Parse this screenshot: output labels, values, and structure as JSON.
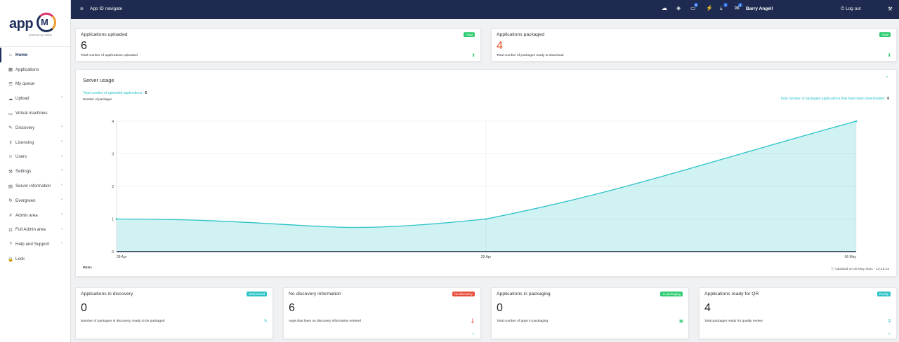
{
  "sidebar": {
    "logo_text": "app",
    "logo_mark": "M",
    "logo_sub": "powered by Juriba",
    "items": [
      {
        "label": "Home",
        "icon": "home-icon",
        "glyph": "⌂",
        "chevron": false,
        "active": true
      },
      {
        "label": "Applications",
        "icon": "grid-icon",
        "glyph": "▦",
        "chevron": false
      },
      {
        "label": "My queue",
        "icon": "list-icon",
        "glyph": "☰",
        "chevron": false
      },
      {
        "label": "Upload",
        "icon": "cloud-upload-icon",
        "glyph": "☁",
        "chevron": true
      },
      {
        "label": "Virtual machines",
        "icon": "monitor-icon",
        "glyph": "▭",
        "chevron": false
      },
      {
        "label": "Discovery",
        "icon": "pencil-icon",
        "glyph": "✎",
        "chevron": true
      },
      {
        "label": "Licensing",
        "icon": "key-icon",
        "glyph": "⚷",
        "chevron": true
      },
      {
        "label": "Users",
        "icon": "users-icon",
        "glyph": "☺",
        "chevron": true
      },
      {
        "label": "Settings",
        "icon": "wrench-icon",
        "glyph": "⚒",
        "chevron": true
      },
      {
        "label": "Server information",
        "icon": "server-icon",
        "glyph": "▤",
        "chevron": true
      },
      {
        "label": "Evergreen",
        "icon": "refresh-icon",
        "glyph": "↻",
        "chevron": true
      },
      {
        "label": "Admin area",
        "icon": "hash-icon",
        "glyph": "#",
        "chevron": true
      },
      {
        "label": "Full Admin area",
        "icon": "admin-icon",
        "glyph": "⊡",
        "chevron": true
      },
      {
        "label": "Help and Support",
        "icon": "question-icon",
        "glyph": "?",
        "chevron": true
      },
      {
        "label": "Lock",
        "icon": "lock-icon",
        "glyph": "🔒",
        "chevron": false
      }
    ]
  },
  "topbar": {
    "menu_glyph": "≡",
    "title": "App ID navigate",
    "user": "Barry Angell",
    "icons": [
      {
        "name": "cloud-icon",
        "glyph": "☁",
        "badge": ""
      },
      {
        "name": "layers-icon",
        "glyph": "◈",
        "badge": ""
      },
      {
        "name": "monitor-icon",
        "glyph": "▭",
        "badge": "0"
      },
      {
        "name": "bolt-icon",
        "glyph": "⚡",
        "badge": ""
      },
      {
        "name": "download-icon",
        "glyph": "⤓",
        "badge": "4"
      },
      {
        "name": "mail-icon",
        "glyph": "✉",
        "badge": "5"
      }
    ],
    "logout": "Log out",
    "wrench": "⚒"
  },
  "cards": {
    "uploaded": {
      "title": "Applications uploaded",
      "tag": "Total",
      "tag_color": "#2ecc71",
      "value": "6",
      "desc": "Total number of applications uploaded",
      "icon": "⬆"
    },
    "packaged": {
      "title": "Applications packaged",
      "tag": "Total",
      "tag_color": "#2ecc71",
      "value": "4",
      "value_color": "#e8542c",
      "desc": "Total number of packages ready to download",
      "icon": "⬇"
    },
    "discovery": {
      "title": "Applications in discovery",
      "tag": "Discovered",
      "tag_color": "#2cc3c7",
      "value": "0",
      "desc": "Number of packages in discovery, ready to be packaged",
      "icon": "✎"
    },
    "no_discovery": {
      "title": "No discovery information",
      "tag": "No discovery",
      "tag_color": "#e74c3c",
      "value": "6",
      "desc": "Apps that have no discovery information entered",
      "icon": "🌡"
    },
    "packaging": {
      "title": "Applications in packaging",
      "tag": "In packaging",
      "tag_color": "#2ecc71",
      "value": "0",
      "desc": "Total number of apps in packaging",
      "icon": "▣"
    },
    "qr": {
      "title": "Applications ready for QR",
      "tag": "Ready",
      "tag_color": "#2cc3c7",
      "value": "4",
      "desc": "Total packages ready for quality review",
      "icon": "⚲"
    }
  },
  "server_usage": {
    "title": "Server usage",
    "legend_uploaded": "Total number of uploaded applications",
    "legend_uploaded_value": "6",
    "legend_downloaded": "Total number of packaged applications that have been downloaded",
    "legend_downloaded_value": "0",
    "pkg_label": "PKG+",
    "updated": "Updated on 06 May 2021 - 12:18:13"
  },
  "chart_data": {
    "type": "area",
    "title": "",
    "ylabel": "Number of packages",
    "xlabel": "",
    "x_ticks": [
      "09 Apr",
      "29 Apr",
      "06 May"
    ],
    "y_ticks": [
      0,
      1,
      2,
      3,
      4
    ],
    "ylim": [
      0,
      4
    ],
    "grid": true,
    "series": [
      {
        "name": "Total number of packaged applications",
        "color": "#2cc3c7",
        "x": [
          "09 Apr",
          "29 Apr",
          "06 May"
        ],
        "values": [
          1,
          1,
          4
        ]
      },
      {
        "name": "Total number of packaged applications that have been downloaded",
        "color": "#1e2a4f",
        "x": [
          "09 Apr",
          "29 Apr",
          "06 May"
        ],
        "values": [
          0,
          0,
          0
        ]
      }
    ]
  }
}
